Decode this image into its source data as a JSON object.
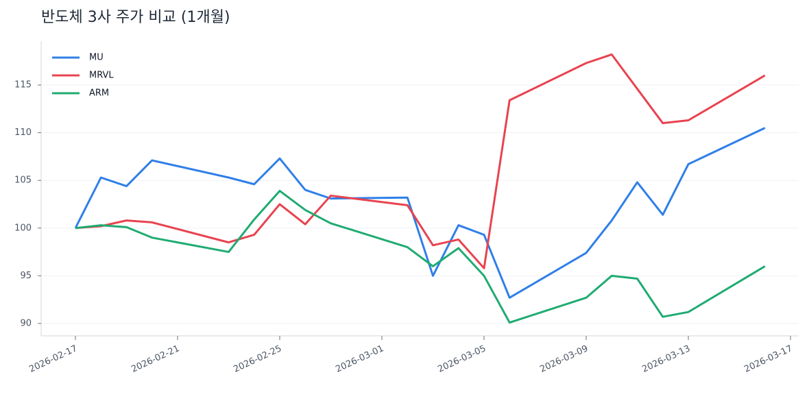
{
  "chart_data": {
    "type": "line",
    "title": "반도체 3사 주가 비교 (1개월)",
    "x": [
      "2026-02-17",
      "2026-02-18",
      "2026-02-19",
      "2026-02-20",
      "2026-02-23",
      "2026-02-24",
      "2026-02-25",
      "2026-02-26",
      "2026-02-27",
      "2026-03-02",
      "2026-03-03",
      "2026-03-04",
      "2026-03-05",
      "2026-03-06",
      "2026-03-09",
      "2026-03-10",
      "2026-03-11",
      "2026-03-12",
      "2026-03-13",
      "2026-03-16"
    ],
    "series": [
      {
        "name": "MU",
        "color": "#2f7fe8",
        "values": [
          100,
          105.3,
          104.4,
          107.1,
          105.3,
          104.6,
          107.3,
          104.0,
          103.1,
          103.2,
          95.0,
          100.3,
          99.3,
          92.7,
          97.4,
          100.8,
          104.8,
          101.4,
          106.7,
          110.5
        ]
      },
      {
        "name": "MRVL",
        "color": "#e8434f",
        "values": [
          100,
          100.2,
          100.8,
          100.6,
          98.5,
          99.3,
          102.5,
          100.4,
          103.4,
          102.4,
          98.2,
          98.8,
          95.8,
          113.4,
          117.3,
          118.2,
          114.6,
          111.0,
          111.3,
          116.0
        ]
      },
      {
        "name": "ARM",
        "color": "#20ab72",
        "values": [
          100,
          100.3,
          100.1,
          99.0,
          97.5,
          100.9,
          103.9,
          101.9,
          100.5,
          98.0,
          96.0,
          97.9,
          95.0,
          90.1,
          92.7,
          95.0,
          94.7,
          90.7,
          91.2,
          96.0
        ]
      }
    ],
    "xlim": [
      "2026-02-16",
      "2026-03-17"
    ],
    "xticks": [
      "2026-02-17",
      "2026-02-21",
      "2026-02-25",
      "2026-03-01",
      "2026-03-05",
      "2026-03-09",
      "2026-03-13",
      "2026-03-17"
    ],
    "ylim": [
      88.7,
      119.6
    ],
    "yticks": [
      90,
      95,
      100,
      105,
      110,
      115
    ],
    "grid": true,
    "legend": "upper left"
  }
}
